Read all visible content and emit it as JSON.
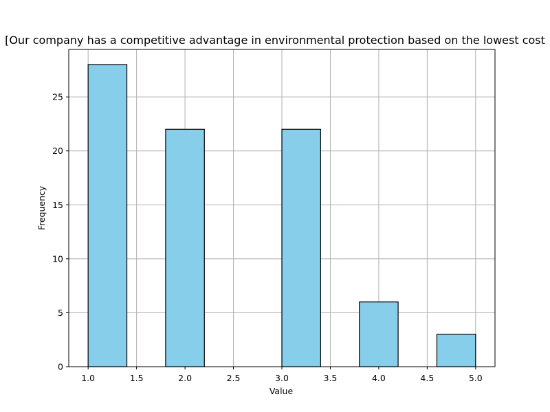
{
  "chart_data": {
    "type": "bar",
    "title": "[Our company has a competitive advantage in environmental protection based on the lowest cost",
    "xlabel": "Value",
    "ylabel": "Frequency",
    "xlim": [
      0.8,
      5.2
    ],
    "ylim": [
      0,
      29.4
    ],
    "bins": [
      {
        "start": 1.0,
        "end": 1.4,
        "count": 28
      },
      {
        "start": 1.4,
        "end": 1.8,
        "count": 0
      },
      {
        "start": 1.8,
        "end": 2.2,
        "count": 22
      },
      {
        "start": 2.2,
        "end": 2.6,
        "count": 0
      },
      {
        "start": 2.6,
        "end": 3.0,
        "count": 0
      },
      {
        "start": 3.0,
        "end": 3.4,
        "count": 22
      },
      {
        "start": 3.4,
        "end": 3.8,
        "count": 0
      },
      {
        "start": 3.8,
        "end": 4.2,
        "count": 6
      },
      {
        "start": 4.2,
        "end": 4.6,
        "count": 0
      },
      {
        "start": 4.6,
        "end": 5.0,
        "count": 3
      }
    ],
    "x_ticks": [
      "1.0",
      "1.5",
      "2.0",
      "2.5",
      "3.0",
      "3.5",
      "4.0",
      "4.5",
      "5.0"
    ],
    "y_ticks": [
      "0",
      "5",
      "10",
      "15",
      "20",
      "25"
    ],
    "grid": true,
    "bar_color": "#87CEEB",
    "edge_color": "#000000",
    "grid_color": "#b0b0b0"
  }
}
